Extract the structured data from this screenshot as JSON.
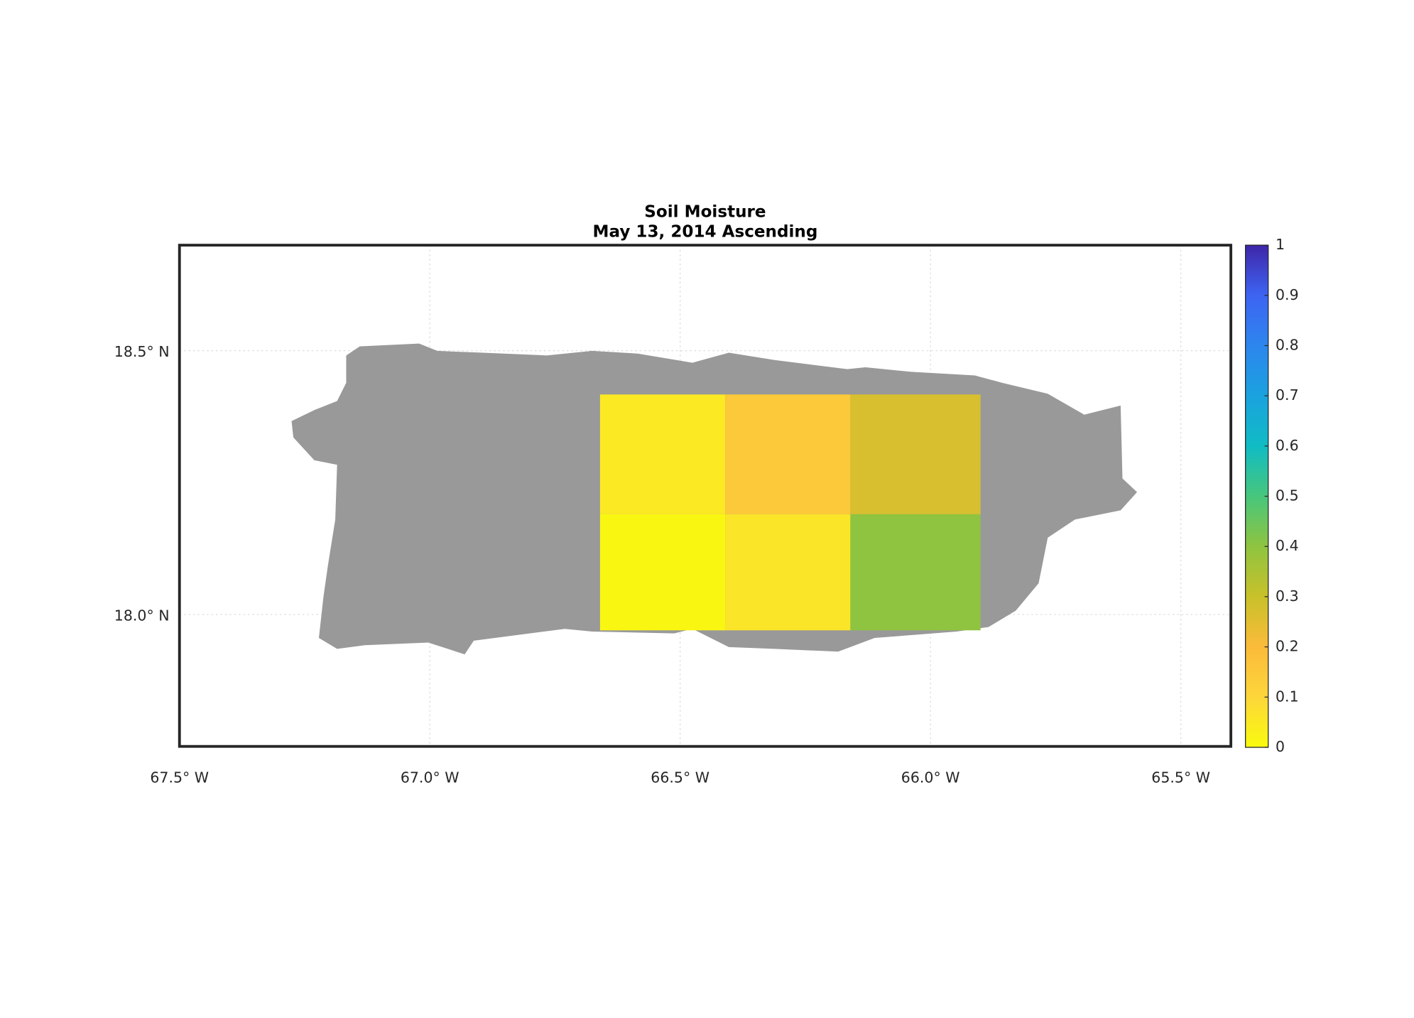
{
  "chart_data": {
    "type": "heatmap",
    "title": "Soil Moisture",
    "subtitle": "May 13, 2014 Ascending",
    "x_edges": [
      -66.66,
      -66.41,
      -66.16,
      -65.9
    ],
    "y_edges": [
      17.97,
      18.19,
      18.417
    ],
    "z": [
      [
        0.01,
        0.06,
        0.4
      ],
      [
        0.05,
        0.15,
        0.27
      ]
    ],
    "xlim": [
      -67.5,
      -65.4
    ],
    "ylim": [
      17.75,
      18.7
    ],
    "xticks": [
      {
        "value": -67.5,
        "label": "67.5° W"
      },
      {
        "value": -67.0,
        "label": "67.0° W"
      },
      {
        "value": -66.5,
        "label": "66.5° W"
      },
      {
        "value": -66.0,
        "label": "66.0° W"
      },
      {
        "value": -65.5,
        "label": "65.5° W"
      }
    ],
    "yticks": [
      {
        "value": 18.0,
        "label": "18.0° N"
      },
      {
        "value": 18.5,
        "label": "18.5° N"
      }
    ],
    "grid": true,
    "clim": [
      0,
      1
    ],
    "cticks": [
      0,
      0.1,
      0.2,
      0.3,
      0.4,
      0.5,
      0.6,
      0.7,
      0.8,
      0.9,
      1
    ],
    "colormap": [
      "#f9fb0e",
      "#fdd63a",
      "#fbbb3a",
      "#c8c12a",
      "#8fc440",
      "#47c67c",
      "#10bcc4",
      "#1aa2df",
      "#2d86ee",
      "#3d64f2",
      "#3e26a8"
    ],
    "land_color": "#999999"
  }
}
